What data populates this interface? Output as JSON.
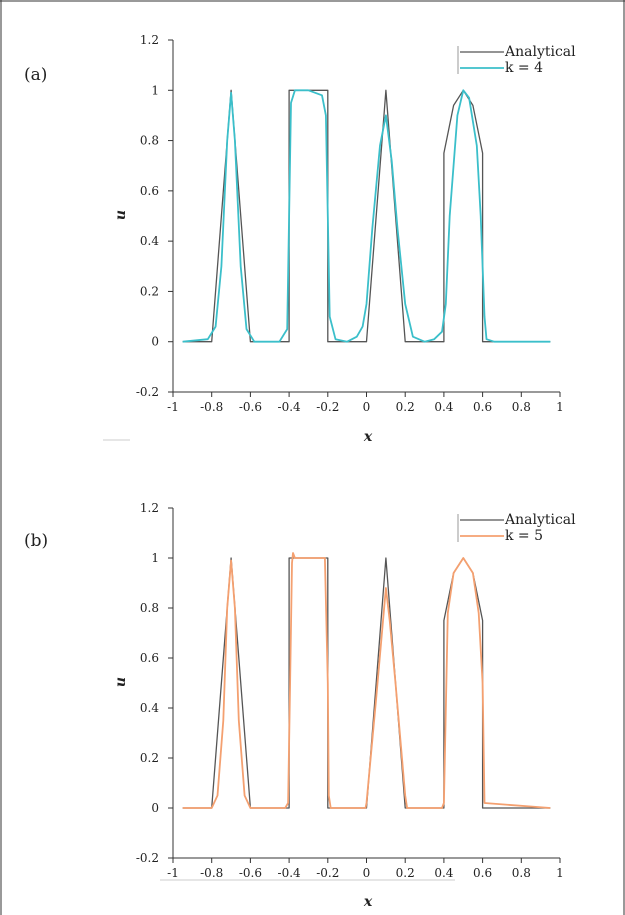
{
  "chart_data": [
    {
      "type": "line",
      "panel_label": "(a)",
      "xlabel": "x",
      "ylabel": "u",
      "xlim": [
        -1,
        1
      ],
      "ylim": [
        -0.2,
        1.2
      ],
      "x_ticks": [
        "-1",
        "-0.8",
        "-0.6",
        "-0.4",
        "-0.2",
        "0",
        "0.2",
        "0.4",
        "0.6",
        "0.8",
        "1"
      ],
      "y_ticks": [
        "1.2",
        "1",
        "0.8",
        "0.6",
        "0.4",
        "0.2",
        "0",
        "-0.2"
      ],
      "legend_position": "top-right",
      "series": [
        {
          "name": "Analytical",
          "color": "#555555",
          "x": [
            -0.95,
            -0.8,
            -0.7,
            -0.6,
            -0.4,
            -0.4,
            -0.2,
            -0.2,
            0.0,
            0.1,
            0.2,
            0.4,
            0.4,
            0.45,
            0.5,
            0.55,
            0.6,
            0.6,
            0.95
          ],
          "y": [
            0,
            0,
            1,
            0,
            0,
            1,
            1,
            0,
            0,
            1,
            0,
            0,
            0.75,
            0.94,
            1,
            0.94,
            0.75,
            0,
            0
          ]
        },
        {
          "name": "k = 4",
          "color": "#3bbfca",
          "x": [
            -0.95,
            -0.82,
            -0.78,
            -0.75,
            -0.72,
            -0.7,
            -0.68,
            -0.65,
            -0.62,
            -0.58,
            -0.45,
            -0.41,
            -0.4,
            -0.39,
            -0.37,
            -0.3,
            -0.23,
            -0.21,
            -0.2,
            -0.19,
            -0.16,
            -0.1,
            -0.05,
            -0.02,
            0.0,
            0.03,
            0.07,
            0.1,
            0.13,
            0.16,
            0.2,
            0.24,
            0.3,
            0.35,
            0.39,
            0.41,
            0.43,
            0.47,
            0.5,
            0.53,
            0.57,
            0.59,
            0.61,
            0.62,
            0.66,
            0.95
          ],
          "y": [
            0,
            0.01,
            0.06,
            0.3,
            0.8,
            0.99,
            0.8,
            0.3,
            0.05,
            0,
            0,
            0.05,
            0.5,
            0.95,
            1,
            1,
            0.98,
            0.9,
            0.5,
            0.1,
            0.01,
            0,
            0.02,
            0.06,
            0.15,
            0.45,
            0.78,
            0.9,
            0.72,
            0.45,
            0.15,
            0.02,
            0,
            0.01,
            0.04,
            0.15,
            0.5,
            0.9,
            1,
            0.97,
            0.78,
            0.5,
            0.1,
            0.01,
            0,
            0
          ]
        }
      ]
    },
    {
      "type": "line",
      "panel_label": "(b)",
      "xlabel": "x",
      "ylabel": "u",
      "xlim": [
        -1,
        1
      ],
      "ylim": [
        -0.2,
        1.2
      ],
      "x_ticks": [
        "-1",
        "-0.8",
        "-0.6",
        "-0.4",
        "-0.2",
        "0",
        "0.2",
        "0.4",
        "0.6",
        "0.8",
        "1"
      ],
      "y_ticks": [
        "1.2",
        "1",
        "0.8",
        "0.6",
        "0.4",
        "0.2",
        "0",
        "-0.2"
      ],
      "legend_position": "top-right",
      "series": [
        {
          "name": "Analytical",
          "color": "#555555",
          "x": [
            -0.95,
            -0.8,
            -0.7,
            -0.6,
            -0.4,
            -0.4,
            -0.2,
            -0.2,
            0.0,
            0.1,
            0.2,
            0.4,
            0.4,
            0.45,
            0.5,
            0.55,
            0.6,
            0.6,
            0.95
          ],
          "y": [
            0,
            0,
            1,
            0,
            0,
            1,
            1,
            0,
            0,
            1,
            0,
            0,
            0.75,
            0.94,
            1,
            0.94,
            0.75,
            0,
            0
          ]
        },
        {
          "name": "k = 5",
          "color": "#f4a070",
          "x": [
            -0.95,
            -0.8,
            -0.77,
            -0.74,
            -0.72,
            -0.7,
            -0.68,
            -0.66,
            -0.63,
            -0.6,
            -0.42,
            -0.405,
            -0.395,
            -0.385,
            -0.38,
            -0.37,
            -0.3,
            -0.24,
            -0.215,
            -0.2,
            -0.195,
            -0.185,
            -0.15,
            -0.005,
            0.0,
            0.05,
            0.1,
            0.12,
            0.15,
            0.2,
            0.21,
            0.39,
            0.4,
            0.42,
            0.45,
            0.5,
            0.55,
            0.58,
            0.6,
            0.61,
            0.95
          ],
          "y": [
            0,
            0,
            0.05,
            0.35,
            0.8,
            0.99,
            0.8,
            0.35,
            0.05,
            0,
            0,
            0.02,
            0.5,
            0.98,
            1.02,
            1,
            1,
            1,
            1,
            0.5,
            0.05,
            0,
            0,
            0,
            0.02,
            0.44,
            0.88,
            0.75,
            0.5,
            0.05,
            0,
            0,
            0.02,
            0.78,
            0.94,
            1,
            0.94,
            0.78,
            0.5,
            0.02,
            0
          ]
        }
      ]
    }
  ]
}
